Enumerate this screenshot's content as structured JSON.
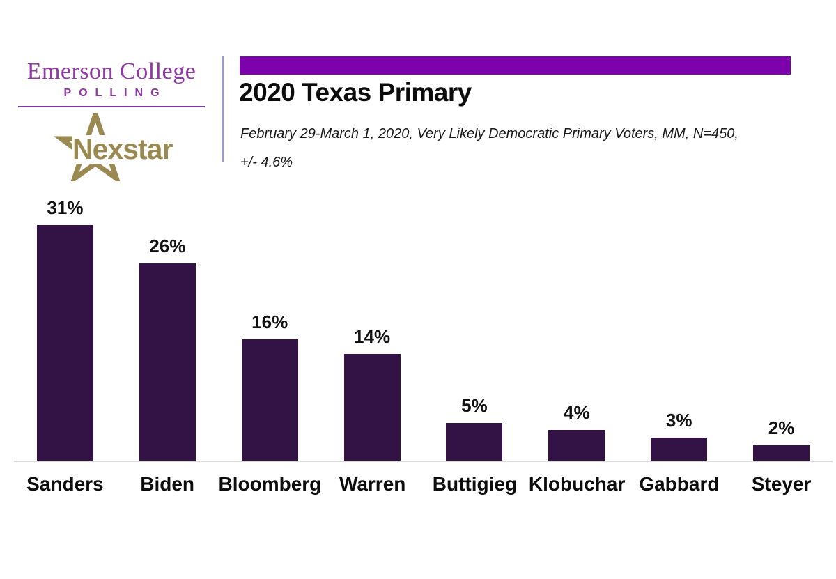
{
  "logo": {
    "emerson_title": "Emerson College",
    "emerson_subtitle": "POLLING",
    "nexstar_label": "Nexstar"
  },
  "header": {
    "title": "2020 Texas Primary",
    "subtitle_line1": "February 29-March 1, 2020, Very Likely Democratic Primary Voters, MM,  N=450,",
    "subtitle_line2": "+/- 4.6%"
  },
  "colors": {
    "banner_purple": "#7d02ab",
    "bar_purple": "#331245",
    "emerson_purple": "#9138a6",
    "nexstar_gold": "#9a8a52",
    "divider_lavender": "#9b9bcd",
    "axis_gray": "#d8d8d8"
  },
  "chart_data": {
    "type": "bar",
    "title": "2020 Texas Primary",
    "categories": [
      "Sanders",
      "Biden",
      "Bloomberg",
      "Warren",
      "Buttigieg",
      "Klobuchar",
      "Gabbard",
      "Steyer"
    ],
    "values": [
      31,
      26,
      16,
      14,
      5,
      4,
      3,
      2
    ],
    "value_labels": [
      "31%",
      "26%",
      "16%",
      "14%",
      "5%",
      "4%",
      "3%",
      "2%"
    ],
    "xlabel": "",
    "ylabel": "",
    "ylim": [
      0,
      35
    ],
    "grid": false,
    "legend": false,
    "bar_color": "#331245",
    "data_labels_position": "above-bars"
  }
}
